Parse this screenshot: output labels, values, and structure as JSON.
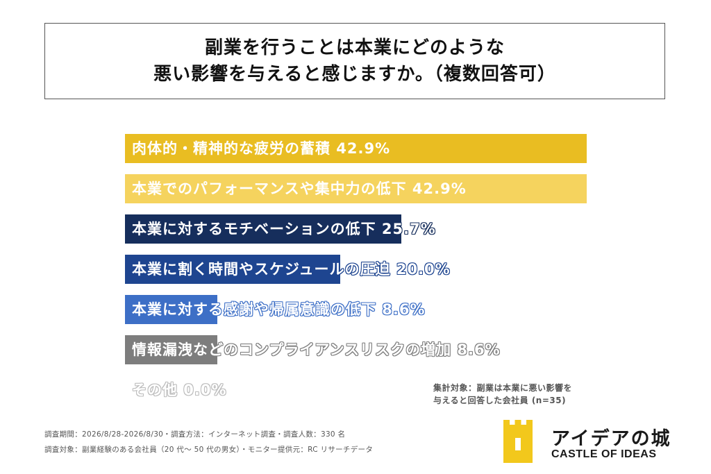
{
  "title": {
    "line1": "副業を行うことは本業にどのような",
    "line2": "悪い影響を与えると感じますか。（複数回答可）"
  },
  "chart_data": {
    "type": "bar",
    "orientation": "horizontal",
    "categories": [
      "肉体的・精神的な疲労の蓄積",
      "本業でのパフォーマンスや集中力の低下",
      "本業に対するモチベーションの低下",
      "本業に割く時間やスケジュールの圧迫",
      "本業に対する感謝や帰属意識の低下",
      "情報漏洩などのコンプライアンスリスクの増加",
      "その他"
    ],
    "values": [
      42.9,
      42.9,
      25.7,
      20.0,
      8.6,
      8.6,
      0.0
    ],
    "value_labels": [
      "42.9%",
      "42.9%",
      "25.7%",
      "20.0%",
      "8.6%",
      "8.6%",
      "0.0%"
    ],
    "colors": [
      "#e9bd22",
      "#f5d35e",
      "#162e5c",
      "#1e4590",
      "#3d6fc6",
      "#7d7d7d",
      "#bdbdbd"
    ],
    "xlim": [
      0,
      42.9
    ]
  },
  "note": {
    "line1": "集計対象：副業は本業に悪い影響を",
    "line2": "与えると回答した会社員 (n=35)"
  },
  "footer": {
    "line1": "調査期間：2026/8/28-2026/8/30・調査方法：インターネット調査・調査人数：330 名",
    "line2": "調査対象：副業経験のある会社員（20 代～ 50 代の男女）・モニター提供元：RC リサーチデータ"
  },
  "logo": {
    "jp": "アイデアの城",
    "en": "CASTLE OF IDEAS",
    "color": "#f2c81c",
    "icon": "castle-tower-icon"
  }
}
